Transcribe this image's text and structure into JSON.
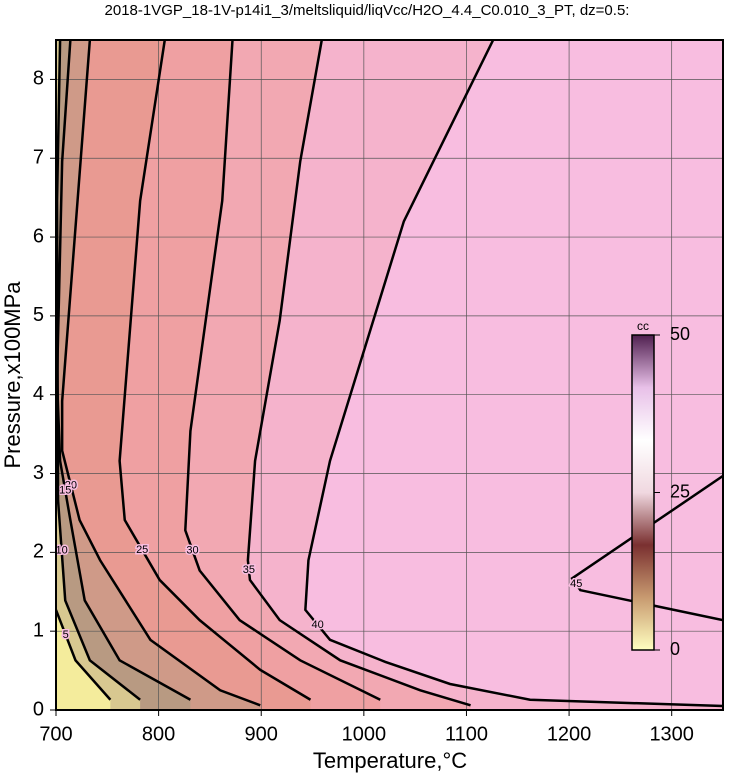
{
  "chart_data": {
    "type": "contour",
    "title": "2018-1VGP_18-1V-p14i1_3/meltsliquid/liqVcc/H2O_4.4_C0.010_3_PT, dz=0.5:",
    "x_label": "Temperature,°C",
    "y_label": "Pressure,x100MPa",
    "xlim": [
      700,
      1350
    ],
    "xticks": [
      700,
      800,
      900,
      1000,
      1100,
      1200,
      1300
    ],
    "ylim": [
      0,
      8.5
    ],
    "yticks": [
      0,
      1,
      2,
      3,
      4,
      5,
      6,
      7,
      8
    ],
    "grid": true,
    "background_color": "#f8bde0",
    "contours": [
      {
        "level": 40,
        "fill": "#f5b3cc",
        "x": [
          1126,
          1039,
          967,
          946,
          943,
          967,
          1021,
          1084,
          1162,
          1350
        ],
        "y": [
          8.5,
          6.2,
          3.16,
          1.9,
          1.27,
          0.89,
          0.61,
          0.33,
          0.13,
          0.05
        ]
      },
      {
        "level": 35,
        "fill": "#f2a8b2",
        "x": [
          959,
          938,
          918,
          894,
          887,
          889,
          918,
          977,
          1055,
          1104
        ],
        "y": [
          8.5,
          6.96,
          4.94,
          3.16,
          1.9,
          1.65,
          1.14,
          0.63,
          0.25,
          0.06
        ]
      },
      {
        "level": 30,
        "fill": "#efa0a2",
        "x": [
          872,
          862,
          831,
          826,
          840,
          879,
          938,
          1016
        ],
        "y": [
          8.5,
          6.46,
          3.54,
          2.28,
          1.77,
          1.14,
          0.63,
          0.13
        ]
      },
      {
        "level": 25,
        "fill": "#e99a92",
        "x": [
          806,
          782,
          762,
          767,
          801,
          840,
          899,
          948
        ],
        "y": [
          8.5,
          6.46,
          3.16,
          2.41,
          1.65,
          1.14,
          0.51,
          0.13
        ]
      },
      {
        "level": 20,
        "fill": "#cf9a88",
        "x": [
          733,
          721,
          706,
          706,
          723,
          743,
          792,
          860,
          899
        ],
        "y": [
          8.5,
          6.46,
          3.92,
          3.29,
          2.41,
          1.9,
          0.89,
          0.25,
          0.06
        ]
      },
      {
        "level": 15,
        "fill": "#b89a82",
        "x": [
          714,
          706,
          701,
          704,
          714,
          728,
          762,
          831
        ],
        "y": [
          8.5,
          6.96,
          4.18,
          3.16,
          2.41,
          1.39,
          0.63,
          0.13
        ]
      },
      {
        "level": 10,
        "fill": "#d8c890",
        "x": [
          704,
          701,
          702,
          709,
          733,
          782
        ],
        "y": [
          8.5,
          6.46,
          2.66,
          1.39,
          0.63,
          0.13
        ]
      },
      {
        "level": 5,
        "fill": "#f4ec9c",
        "x": [
          700,
          719,
          753
        ],
        "y": [
          1.27,
          0.63,
          0.13
        ]
      },
      {
        "level": 45,
        "fill": null,
        "x": [
          1350,
          1203,
          1211,
          1350
        ],
        "y": [
          2.97,
          1.67,
          1.52,
          1.14
        ]
      }
    ],
    "colorbar": {
      "label": "cc",
      "lim": [
        0,
        50
      ],
      "ticks": [
        0,
        25,
        50
      ],
      "colors": [
        "#ffffc0",
        "#c89a70",
        "#7a3030",
        "#f0d8e0",
        "#ffffff",
        "#e8c0e8",
        "#502050"
      ]
    }
  }
}
